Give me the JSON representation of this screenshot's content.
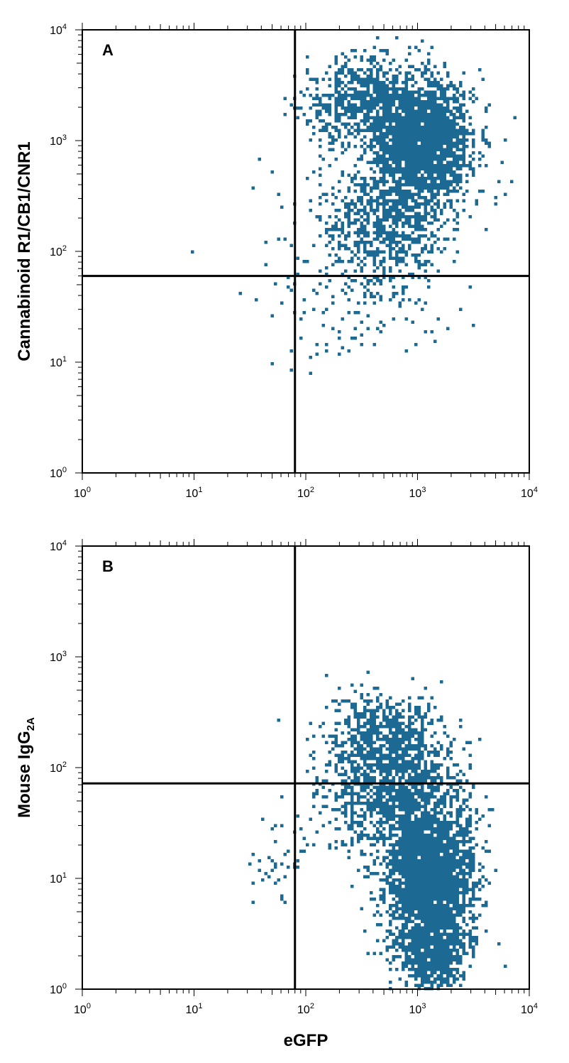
{
  "chart_data": [
    {
      "type": "scatter",
      "panel_label": "A",
      "xlabel": "",
      "ylabel": "Cannabinoid R1/CB1/CNR1",
      "xscale": "log",
      "yscale": "log",
      "xlim": [
        1,
        10000
      ],
      "ylim": [
        1,
        10000
      ],
      "x_ticks": [
        {
          "base": "10",
          "exp": "0"
        },
        {
          "base": "10",
          "exp": "1"
        },
        {
          "base": "10",
          "exp": "2"
        },
        {
          "base": "10",
          "exp": "3"
        },
        {
          "base": "10",
          "exp": "4"
        }
      ],
      "y_ticks": [
        {
          "base": "10",
          "exp": "0"
        },
        {
          "base": "10",
          "exp": "1"
        },
        {
          "base": "10",
          "exp": "2"
        },
        {
          "base": "10",
          "exp": "3"
        },
        {
          "base": "10",
          "exp": "4"
        }
      ],
      "quadrant_gate": {
        "x": 80,
        "y": 60
      },
      "point_color": "#1c6a93",
      "populations": [
        {
          "center_x": 1100,
          "center_y": 1000,
          "spread_x_decades": 0.22,
          "spread_y_decades": 0.28,
          "count": 2200
        },
        {
          "center_x": 300,
          "center_y": 2200,
          "spread_x_decades": 0.25,
          "spread_y_decades": 0.2,
          "count": 600
        },
        {
          "center_x": 500,
          "center_y": 180,
          "spread_x_decades": 0.28,
          "spread_y_decades": 0.25,
          "count": 700
        },
        {
          "center_x": 350,
          "center_y": 40,
          "spread_x_decades": 0.35,
          "spread_y_decades": 0.3,
          "count": 120
        },
        {
          "center_x": 80,
          "center_y": 60,
          "spread_x_decades": 0.3,
          "spread_y_decades": 0.5,
          "count": 40
        }
      ]
    },
    {
      "type": "scatter",
      "panel_label": "B",
      "xlabel": "eGFP",
      "ylabel": "Mouse IgG",
      "ylabel_subscript": "2A",
      "xscale": "log",
      "yscale": "log",
      "xlim": [
        1,
        10000
      ],
      "ylim": [
        1,
        10000
      ],
      "x_ticks": [
        {
          "base": "10",
          "exp": "0"
        },
        {
          "base": "10",
          "exp": "1"
        },
        {
          "base": "10",
          "exp": "2"
        },
        {
          "base": "10",
          "exp": "3"
        },
        {
          "base": "10",
          "exp": "4"
        }
      ],
      "y_ticks": [
        {
          "base": "10",
          "exp": "0"
        },
        {
          "base": "10",
          "exp": "1"
        },
        {
          "base": "10",
          "exp": "2"
        },
        {
          "base": "10",
          "exp": "3"
        },
        {
          "base": "10",
          "exp": "4"
        }
      ],
      "quadrant_gate": {
        "x": 80,
        "y": 72
      },
      "point_color": "#1c6a93",
      "populations": [
        {
          "center_x": 1300,
          "center_y": 10,
          "spread_x_decades": 0.2,
          "spread_y_decades": 0.35,
          "count": 2600
        },
        {
          "center_x": 600,
          "center_y": 60,
          "spread_x_decades": 0.3,
          "spread_y_decades": 0.3,
          "count": 1100
        },
        {
          "center_x": 500,
          "center_y": 200,
          "spread_x_decades": 0.25,
          "spread_y_decades": 0.2,
          "count": 500
        },
        {
          "center_x": 1400,
          "center_y": 2,
          "spread_x_decades": 0.15,
          "spread_y_decades": 0.15,
          "count": 500
        },
        {
          "center_x": 60,
          "center_y": 15,
          "spread_x_decades": 0.15,
          "spread_y_decades": 0.2,
          "count": 40
        }
      ]
    }
  ]
}
